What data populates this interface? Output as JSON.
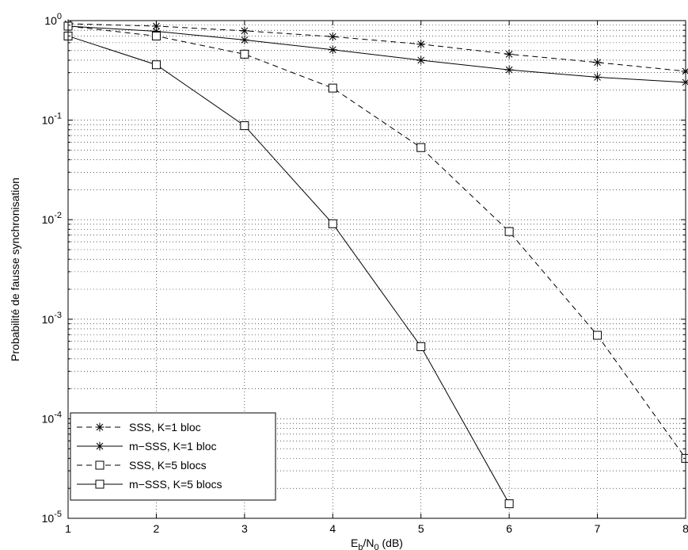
{
  "chart_data": {
    "type": "line",
    "xlabel": {
      "base": "E",
      "sub1": "b",
      "mid": "/N",
      "sub2": "0",
      "tail": " (dB)"
    },
    "ylabel": "Probabilité de fausse synchronisation",
    "xlim": [
      1,
      8
    ],
    "ylim": [
      1e-05,
      1
    ],
    "y_scale": "log",
    "grid": true,
    "legend_position": "bottom-left",
    "x_ticks": [
      "1",
      "2",
      "3",
      "4",
      "5",
      "6",
      "7",
      "8"
    ],
    "y_ticks": [
      {
        "base": "10",
        "exp": "-5"
      },
      {
        "base": "10",
        "exp": "-4"
      },
      {
        "base": "10",
        "exp": "-3"
      },
      {
        "base": "10",
        "exp": "-2"
      },
      {
        "base": "10",
        "exp": "-1"
      },
      {
        "base": "10",
        "exp": "0"
      }
    ],
    "series": [
      {
        "name": "SSS, K=1 bloc",
        "line": "dashed",
        "marker": "star",
        "x": [
          1,
          2,
          3,
          4,
          5,
          6,
          7,
          8
        ],
        "y": [
          0.93,
          0.88,
          0.79,
          0.69,
          0.58,
          0.46,
          0.38,
          0.31
        ]
      },
      {
        "name": "m−SSS, K=1 bloc",
        "line": "solid",
        "marker": "star",
        "x": [
          1,
          2,
          3,
          4,
          5,
          6,
          7,
          8
        ],
        "y": [
          0.88,
          0.78,
          0.64,
          0.51,
          0.4,
          0.32,
          0.27,
          0.24
        ]
      },
      {
        "name": "SSS, K=5 blocs",
        "line": "dashed",
        "marker": "square",
        "x": [
          1,
          2,
          3,
          4,
          5,
          6,
          7,
          8
        ],
        "y": [
          0.88,
          0.7,
          0.46,
          0.21,
          0.053,
          0.0076,
          0.00069,
          4e-05
        ]
      },
      {
        "name": "m−SSS, K=5 blocs",
        "line": "solid",
        "marker": "square",
        "x": [
          1,
          2,
          3,
          4,
          5,
          6
        ],
        "y": [
          0.7,
          0.36,
          0.088,
          0.0091,
          0.00053,
          1.4e-05
        ]
      }
    ]
  }
}
